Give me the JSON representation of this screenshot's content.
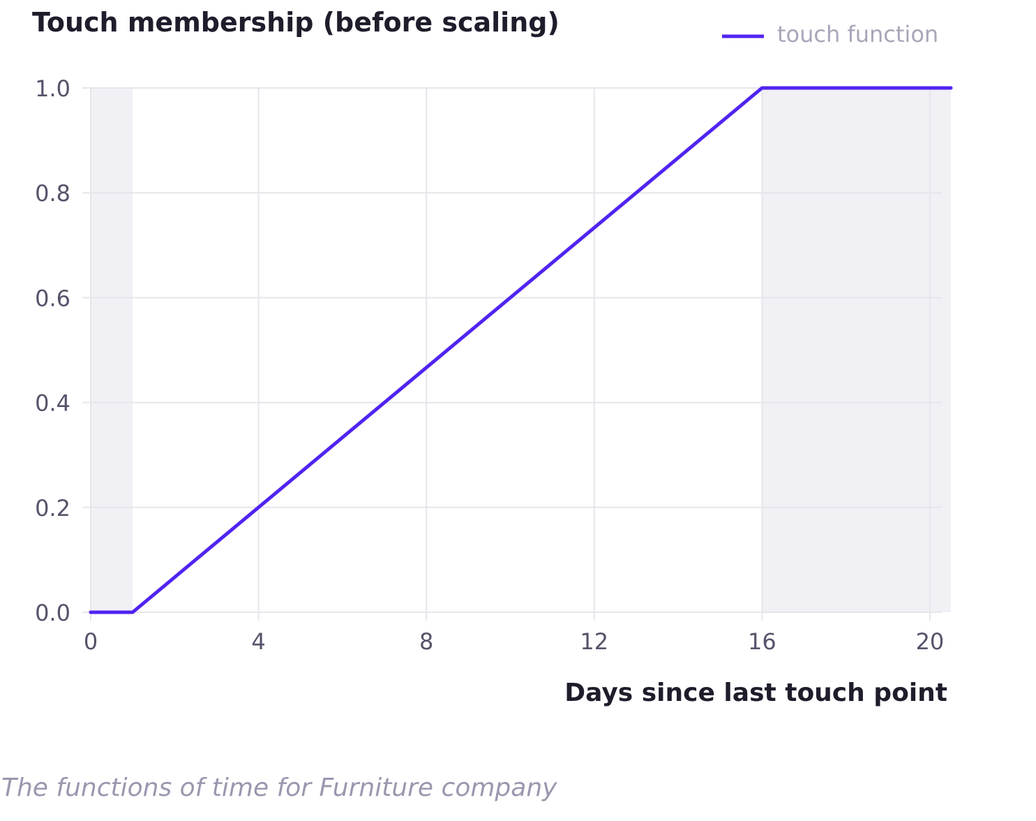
{
  "chart_data": {
    "type": "line",
    "title": "Touch membership (before scaling)",
    "xlabel": "Days since last touch point",
    "ylabel": "",
    "xlim": [
      0,
      20.5
    ],
    "ylim": [
      0,
      1
    ],
    "x_ticks": [
      0,
      4,
      8,
      12,
      16,
      20
    ],
    "y_ticks": [
      0.0,
      0.2,
      0.4,
      0.6,
      0.8,
      1.0
    ],
    "x_tick_labels": [
      "0",
      "4",
      "8",
      "12",
      "16",
      "20"
    ],
    "y_tick_labels": [
      "0.0",
      "0.2",
      "0.4",
      "0.6",
      "0.8",
      "1.0"
    ],
    "grid": true,
    "legend_position": "top-right",
    "shaded_regions": [
      {
        "x_start": 0,
        "x_end": 1
      },
      {
        "x_start": 16,
        "x_end": 20.5
      }
    ],
    "series": [
      {
        "name": "touch function",
        "color": "#5024f0",
        "x": [
          0,
          1,
          16,
          20.5
        ],
        "y": [
          0,
          0,
          1,
          1
        ]
      }
    ]
  },
  "caption": "The functions of time for Furniture company",
  "colors": {
    "line": "#5024f0",
    "grid": "#e6e5ec",
    "shade": "#f1f0f5",
    "axis_text": "#55536a",
    "title_text": "#1f1d2b",
    "legend_text": "#a9a6b8",
    "caption_text": "#9a97ae"
  }
}
